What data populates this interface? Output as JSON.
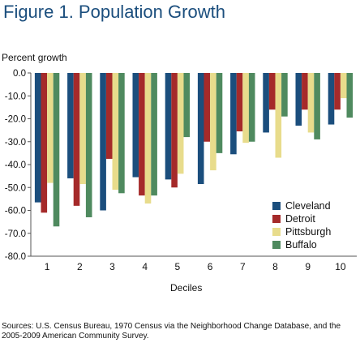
{
  "figure": {
    "title": "Figure 1. Population Growth",
    "source": "Sources: U.S. Census Bureau, 1970 Census via the Neighborhood Change Database, and the 2005-2009 American Community Survey."
  },
  "chart_data": {
    "type": "bar",
    "title": "Figure 1. Population Growth",
    "xlabel": "Deciles",
    "ylabel": "Percent growth",
    "categories": [
      "1",
      "2",
      "3",
      "4",
      "5",
      "6",
      "7",
      "8",
      "9",
      "10"
    ],
    "ylim": [
      -80,
      0
    ],
    "yticks": [
      "0.0",
      "-10.0",
      "-20.0",
      "-30.0",
      "-40.0",
      "-50.0",
      "-60.0",
      "-70.0",
      "-80.0"
    ],
    "ytick_values": [
      0,
      -10,
      -20,
      -30,
      -40,
      -50,
      -60,
      -70,
      -80
    ],
    "grid": false,
    "legend_position": "bottom-right",
    "series": [
      {
        "name": "Cleveland",
        "color": "#1b4e7d",
        "values": [
          -56.5,
          -46,
          -60,
          -45.5,
          -46.5,
          -48.5,
          -35.5,
          -26,
          -23,
          -22.5
        ]
      },
      {
        "name": "Detroit",
        "color": "#a52a2a",
        "values": [
          -61,
          -58,
          -37.5,
          -53.5,
          -50,
          -30,
          -25.5,
          -16,
          -16,
          -16
        ]
      },
      {
        "name": "Pittsburgh",
        "color": "#e8dc8c",
        "values": [
          -48,
          -48.5,
          -51,
          -57,
          -44,
          -42.5,
          -30.5,
          -37,
          -26,
          -11
        ]
      },
      {
        "name": "Buffalo",
        "color": "#4f8a5f",
        "values": [
          -67,
          -63,
          -52.5,
          -53.5,
          -28,
          -35,
          -30,
          -19,
          -29,
          -19.5
        ]
      }
    ]
  }
}
